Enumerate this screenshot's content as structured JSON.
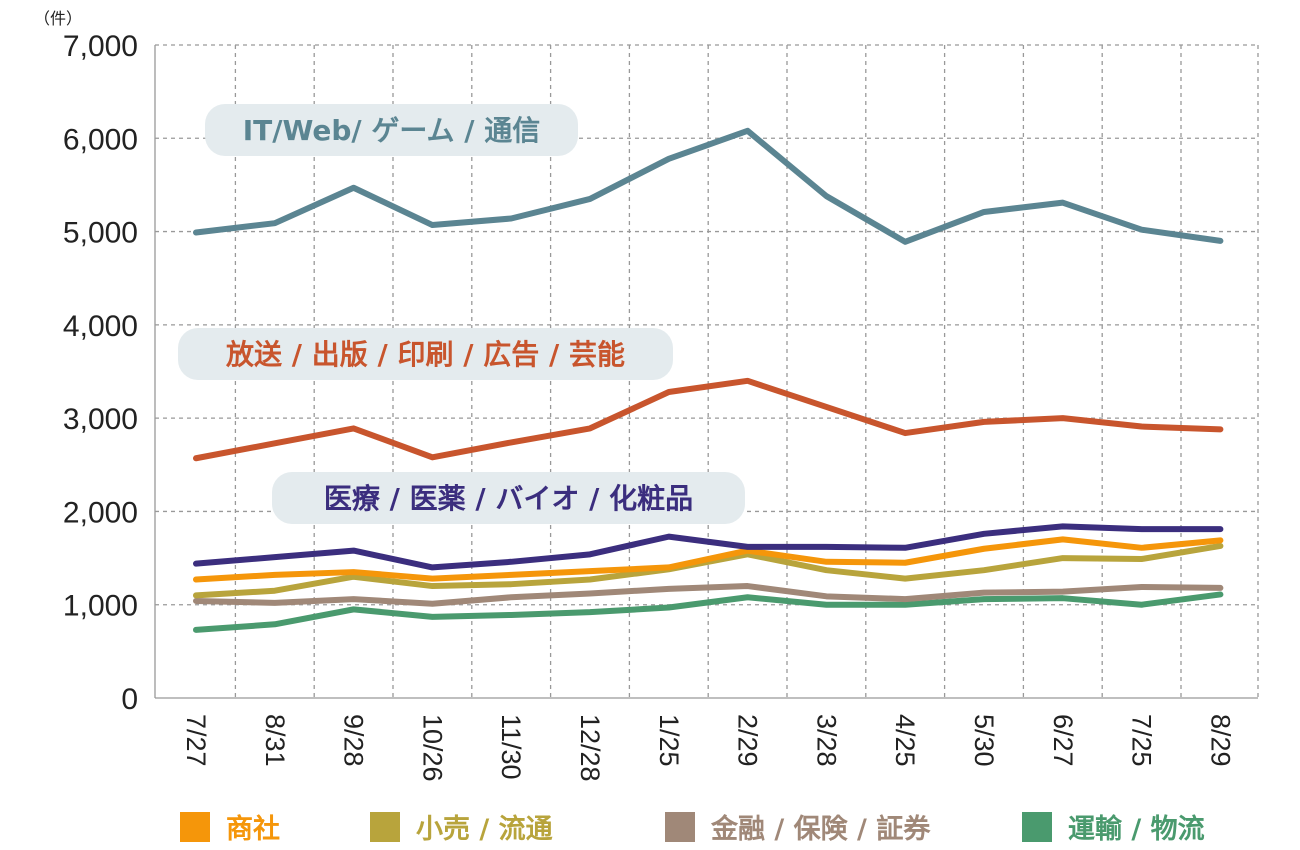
{
  "chart_data": {
    "type": "line",
    "unit_label": "（件）",
    "categories": [
      "7/27",
      "8/31",
      "9/28",
      "10/26",
      "11/30",
      "12/28",
      "1/25",
      "2/29",
      "3/28",
      "4/25",
      "5/30",
      "6/27",
      "7/25",
      "8/29"
    ],
    "ylim": [
      0,
      7000
    ],
    "yticks": [
      0,
      1000,
      2000,
      3000,
      4000,
      5000,
      6000,
      7000
    ],
    "ytick_labels": [
      "0",
      "1,000",
      "2,000",
      "3,000",
      "4,000",
      "5,000",
      "6,000",
      "7,000"
    ],
    "grid": true,
    "legend_position": "bottom",
    "series": [
      {
        "name": "IT/Web/ ゲーム / 通信",
        "color": "#5b8592",
        "values": [
          4990,
          5090,
          5470,
          5070,
          5140,
          5350,
          5780,
          6080,
          5380,
          4890,
          5210,
          5310,
          5020,
          4900
        ]
      },
      {
        "name": "放送 / 出版 / 印刷 / 広告 / 芸能",
        "color": "#c8552d",
        "values": [
          2570,
          2730,
          2890,
          2580,
          2740,
          2890,
          3280,
          3400,
          3120,
          2840,
          2960,
          3000,
          2910,
          2880
        ]
      },
      {
        "name": "医療 / 医薬 / バイオ / 化粧品",
        "color": "#3b2e7e",
        "values": [
          1440,
          1510,
          1580,
          1400,
          1460,
          1540,
          1730,
          1620,
          1620,
          1610,
          1760,
          1840,
          1810,
          1810
        ]
      },
      {
        "name": "商社",
        "color": "#f5960a",
        "values": [
          1270,
          1320,
          1350,
          1280,
          1320,
          1360,
          1400,
          1580,
          1460,
          1450,
          1600,
          1700,
          1610,
          1690
        ]
      },
      {
        "name": "小売 / 流通",
        "color": "#b8a43c",
        "values": [
          1100,
          1150,
          1300,
          1200,
          1220,
          1270,
          1380,
          1540,
          1370,
          1280,
          1370,
          1500,
          1490,
          1630
        ]
      },
      {
        "name": "金融 / 保険 / 証券",
        "color": "#a08878",
        "values": [
          1040,
          1020,
          1060,
          1010,
          1080,
          1120,
          1170,
          1200,
          1090,
          1060,
          1130,
          1140,
          1190,
          1180
        ]
      },
      {
        "name": "運輸 / 物流",
        "color": "#4a9a6e",
        "values": [
          730,
          790,
          950,
          870,
          890,
          920,
          970,
          1080,
          1000,
          1000,
          1060,
          1070,
          1000,
          1110
        ]
      }
    ],
    "annotations": [
      {
        "series": 0,
        "text": "IT/Web/ ゲーム / 通信",
        "color": "#5b8592"
      },
      {
        "series": 1,
        "text": "放送 / 出版 / 印刷 / 広告 / 芸能",
        "color": "#c8552d"
      },
      {
        "series": 2,
        "text": "医療 / 医薬 / バイオ / 化粧品",
        "color": "#3b2e7e"
      }
    ],
    "legend": [
      {
        "series": 3,
        "label": "商社",
        "color": "#f5960a"
      },
      {
        "series": 4,
        "label": "小売 / 流通",
        "color": "#b8a43c"
      },
      {
        "series": 5,
        "label": "金融 / 保険 / 証券",
        "color": "#a08878"
      },
      {
        "series": 6,
        "label": "運輸 / 物流",
        "color": "#4a9a6e"
      }
    ]
  }
}
